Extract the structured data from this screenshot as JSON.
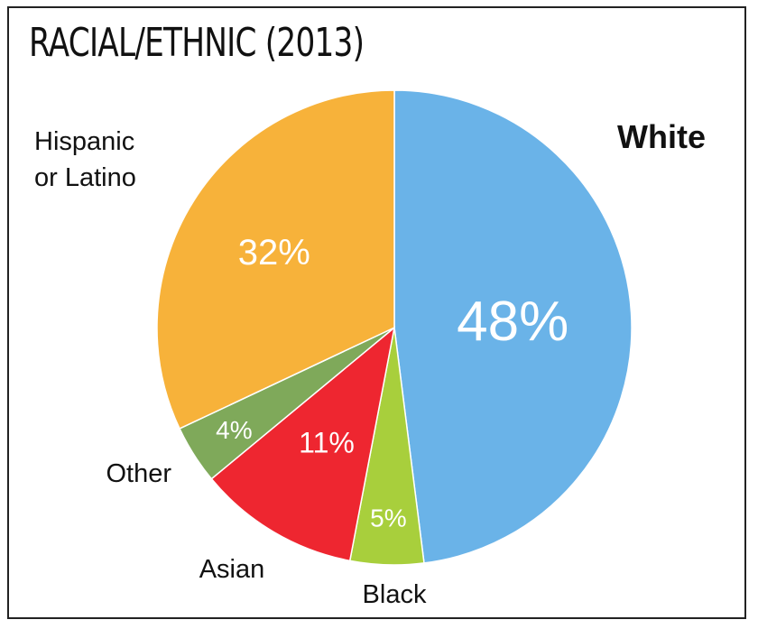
{
  "chart_data": {
    "type": "pie",
    "title": "RACIAL/ETHNIC (2013)",
    "slices": [
      {
        "label": "White",
        "value": 48,
        "value_label": "48%",
        "color": "#6AB3E8"
      },
      {
        "label": "Black",
        "value": 5,
        "value_label": "5%",
        "color": "#A8CF3C"
      },
      {
        "label": "Asian",
        "value": 11,
        "value_label": "11%",
        "color": "#EE2630"
      },
      {
        "label": "Other",
        "value": 4,
        "value_label": "4%",
        "color": "#7FA95A"
      },
      {
        "label": "Hispanic or Latino",
        "label_lines": [
          "Hispanic",
          "or Latino"
        ],
        "value": 32,
        "value_label": "32%",
        "color": "#F7B23A"
      }
    ],
    "start_angle_deg": 0,
    "direction": "clockwise"
  }
}
